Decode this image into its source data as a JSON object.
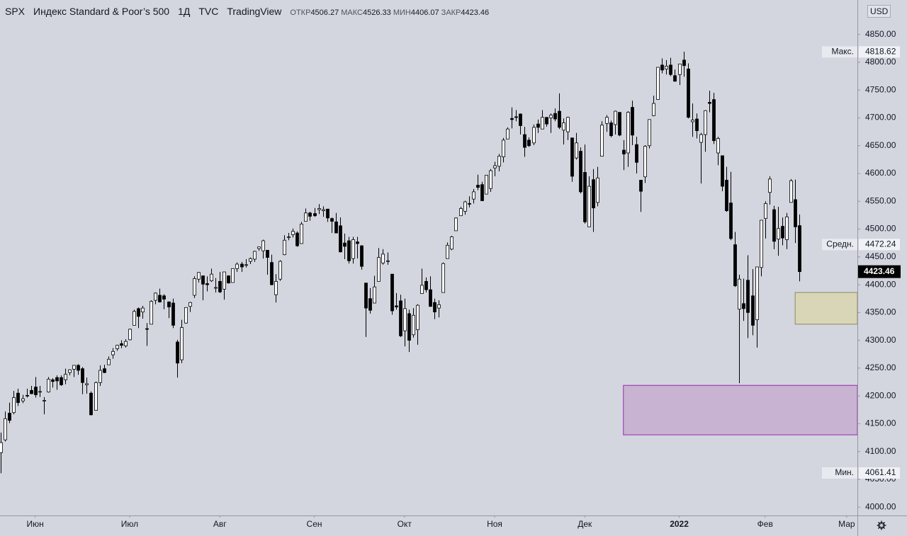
{
  "chart_data": {
    "type": "candlestick",
    "symbol": "SPX",
    "title": "Индекс Standard & Poor’s 500",
    "interval": "1Д",
    "exchange": "TVC",
    "source": "TradingView",
    "ohlc_labels": [
      "ОТКР",
      "МАКС",
      "МИН",
      "ЗАКР"
    ],
    "currency": "USD",
    "up_color": "#ffffff",
    "down_color": "#000000",
    "open": [
      4098,
      4121,
      4169,
      4170,
      4205,
      4191,
      4201,
      4210,
      4216,
      4207,
      4191,
      4207,
      4229,
      4233,
      4233,
      4229,
      4242,
      4248,
      4255,
      4249,
      4220,
      4205,
      4174,
      4224,
      4249,
      4256,
      4274,
      4285,
      4294,
      4290,
      4301,
      4327,
      4357,
      4351,
      4321,
      4329,
      4372,
      4381,
      4380,
      4369,
      4367,
      4297,
      4265,
      4331,
      4361,
      4381,
      4410,
      4416,
      4402,
      4407,
      4395,
      4406,
      4392,
      4416,
      4404,
      4429,
      4437,
      4436,
      4442,
      4446,
      4465,
      4461,
      4462,
      4440,
      4382,
      4410,
      4454,
      4485,
      4490,
      4493,
      4474,
      4514,
      4529,
      4528,
      4535,
      4533,
      4536,
      4519,
      4513,
      4506,
      4475,
      4479,
      4447,
      4477,
      4470,
      4403,
      4375,
      4367,
      4406,
      4439,
      4443,
      4419,
      4362,
      4371,
      4317,
      4348,
      4310,
      4319,
      4384,
      4406,
      4391,
      4368,
      4358,
      4386,
      4447,
      4464,
      4497,
      4524,
      4532,
      4546,
      4554,
      4579,
      4580,
      4563,
      4573,
      4610,
      4613,
      4630,
      4662,
      4699,
      4702,
      4707,
      4670,
      4660,
      4655,
      4689,
      4680,
      4701,
      4700,
      4708,
      4712,
      4678,
      4675,
      4664,
      4628,
      4640,
      4602,
      4504,
      4589,
      4548,
      4631,
      4690,
      4691,
      4688,
      4710,
      4642,
      4637,
      4719,
      4652,
      4588,
      4594,
      4650,
      4704,
      4733,
      4795,
      4788,
      4795,
      4776,
      4778,
      4804,
      4788,
      4693,
      4698,
      4656,
      4670,
      4728,
      4733,
      4637,
      4632,
      4588,
      4547,
      4472,
      4356,
      4366,
      4408,
      4380,
      4337,
      4431,
      4519,
      4566,
      4535,
      4482,
      4505,
      4481,
      4548,
      4553,
      4506.27
    ],
    "high": [
      4134,
      4172,
      4188,
      4209,
      4213,
      4202,
      4213,
      4218,
      4234,
      4218,
      4198,
      4234,
      4232,
      4237,
      4237,
      4249,
      4248,
      4255,
      4257,
      4252,
      4233,
      4208,
      4226,
      4255,
      4256,
      4271,
      4286,
      4292,
      4300,
      4302,
      4321,
      4355,
      4359,
      4362,
      4331,
      4372,
      4386,
      4393,
      4383,
      4370,
      4375,
      4301,
      4337,
      4359,
      4369,
      4415,
      4423,
      4416,
      4415,
      4429,
      4412,
      4423,
      4423,
      4417,
      4429,
      4440,
      4441,
      4446,
      4449,
      4461,
      4468,
      4481,
      4462,
      4454,
      4419,
      4444,
      4489,
      4493,
      4501,
      4496,
      4513,
      4537,
      4531,
      4538,
      4545,
      4541,
      4536,
      4521,
      4529,
      4521,
      4492,
      4486,
      4486,
      4486,
      4471,
      4403,
      4394,
      4416,
      4466,
      4464,
      4458,
      4419,
      4385,
      4382,
      4375,
      4355,
      4358,
      4365,
      4429,
      4413,
      4415,
      4375,
      4372,
      4440,
      4476,
      4488,
      4521,
      4540,
      4551,
      4559,
      4572,
      4598,
      4585,
      4597,
      4608,
      4621,
      4635,
      4664,
      4683,
      4719,
      4714,
      4708,
      4684,
      4665,
      4688,
      4697,
      4714,
      4701,
      4708,
      4717,
      4744,
      4699,
      4702,
      4664,
      4673,
      4647,
      4652,
      4595,
      4608,
      4612,
      4694,
      4705,
      4695,
      4713,
      4710,
      4660,
      4712,
      4731,
      4666,
      4588,
      4651,
      4697,
      4740,
      4791,
      4807,
      4804,
      4808,
      4787,
      4797,
      4819,
      4798,
      4726,
      4708,
      4673,
      4714,
      4749,
      4745,
      4666,
      4632,
      4612,
      4603,
      4495,
      4418,
      4411,
      4453,
      4428,
      4432,
      4516,
      4550,
      4595,
      4542,
      4540,
      4521,
      4529,
      4590,
      4589,
      4526.33
    ],
    "low": [
      4061,
      4118,
      4151,
      4167,
      4182,
      4187,
      4197,
      4203,
      4197,
      4198,
      4167,
      4206,
      4215,
      4211,
      4218,
      4221,
      4237,
      4234,
      4238,
      4203,
      4204,
      4165,
      4174,
      4218,
      4241,
      4256,
      4267,
      4281,
      4286,
      4287,
      4300,
      4327,
      4322,
      4339,
      4290,
      4329,
      4365,
      4368,
      4356,
      4340,
      4322,
      4233,
      4259,
      4330,
      4351,
      4376,
      4404,
      4372,
      4388,
      4405,
      4386,
      4385,
      4373,
      4402,
      4404,
      4423,
      4423,
      4431,
      4437,
      4441,
      4461,
      4447,
      4418,
      4399,
      4368,
      4407,
      4453,
      4480,
      4485,
      4468,
      4474,
      4514,
      4515,
      4522,
      4527,
      4522,
      4513,
      4493,
      4493,
      4458,
      4446,
      4438,
      4438,
      4447,
      4427,
      4306,
      4348,
      4367,
      4406,
      4436,
      4436,
      4346,
      4355,
      4306,
      4289,
      4279,
      4305,
      4292,
      4384,
      4386,
      4360,
      4338,
      4341,
      4386,
      4447,
      4462,
      4497,
      4524,
      4526,
      4539,
      4546,
      4570,
      4551,
      4563,
      4567,
      4595,
      4604,
      4620,
      4662,
      4681,
      4694,
      4670,
      4630,
      4648,
      4651,
      4673,
      4680,
      4684,
      4673,
      4694,
      4680,
      4652,
      4660,
      4585,
      4625,
      4564,
      4510,
      4504,
      4495,
      4541,
      4631,
      4675,
      4665,
      4670,
      4667,
      4606,
      4612,
      4651,
      4600,
      4531,
      4583,
      4645,
      4703,
      4733,
      4780,
      4778,
      4775,
      4765,
      4759,
      4774,
      4699,
      4666,
      4663,
      4582,
      4639,
      4710,
      4653,
      4615,
      4568,
      4531,
      4480,
      4396,
      4223,
      4335,
      4304,
      4309,
      4287,
      4415,
      4483,
      4544,
      4464,
      4452,
      4471,
      4464,
      4548,
      4475,
      4406.07
    ],
    "close": [
      4116,
      4159,
      4156,
      4197,
      4188,
      4195,
      4200,
      4204,
      4202,
      4208,
      4192,
      4230,
      4226,
      4227,
      4220,
      4239,
      4247,
      4255,
      4246,
      4224,
      4222,
      4166,
      4224,
      4246,
      4242,
      4266,
      4280,
      4291,
      4291,
      4298,
      4320,
      4352,
      4343,
      4358,
      4320,
      4370,
      4385,
      4369,
      4374,
      4360,
      4327,
      4259,
      4323,
      4359,
      4368,
      4411,
      4422,
      4401,
      4400,
      4419,
      4395,
      4387,
      4423,
      4403,
      4429,
      4437,
      4432,
      4436,
      4447,
      4460,
      4468,
      4479,
      4449,
      4400,
      4406,
      4442,
      4480,
      4486,
      4496,
      4470,
      4509,
      4529,
      4523,
      4524,
      4537,
      4535,
      4520,
      4514,
      4493,
      4459,
      4469,
      4443,
      4481,
      4474,
      4433,
      4358,
      4354,
      4396,
      4449,
      4455,
      4443,
      4353,
      4360,
      4308,
      4357,
      4300,
      4345,
      4363,
      4399,
      4391,
      4361,
      4351,
      4364,
      4438,
      4471,
      4486,
      4520,
      4537,
      4549,
      4545,
      4567,
      4575,
      4551,
      4597,
      4605,
      4614,
      4631,
      4660,
      4680,
      4697,
      4701,
      4686,
      4647,
      4650,
      4683,
      4683,
      4701,
      4689,
      4705,
      4698,
      4683,
      4691,
      4701,
      4595,
      4655,
      4567,
      4513,
      4577,
      4538,
      4592,
      4687,
      4701,
      4668,
      4712,
      4669,
      4635,
      4710,
      4669,
      4620,
      4568,
      4649,
      4697,
      4726,
      4791,
      4786,
      4793,
      4778,
      4766,
      4797,
      4794,
      4701,
      4696,
      4677,
      4670,
      4713,
      4726,
      4659,
      4663,
      4577,
      4533,
      4483,
      4398,
      4410,
      4357,
      4350,
      4327,
      4432,
      4516,
      4546,
      4590,
      4478,
      4501,
      4484,
      4522,
      4587,
      4504,
      4423.46
    ],
    "xlim": [
      -0.2,
      199.5
    ],
    "xticks": [
      {
        "value": 8,
        "label": "Июн"
      },
      {
        "value": 30,
        "label": "Июл"
      },
      {
        "value": 51,
        "label": "Авг"
      },
      {
        "value": 73,
        "label": "Сен"
      },
      {
        "value": 94,
        "label": "Окт"
      },
      {
        "value": 115,
        "label": "Ноя"
      },
      {
        "value": 136,
        "label": "Дек"
      },
      {
        "value": 158,
        "label": "2022"
      },
      {
        "value": 178,
        "label": "Фев"
      },
      {
        "value": 197,
        "label": "Мар"
      }
    ],
    "ylim": [
      3985,
      4912
    ],
    "yticks": [
      {
        "value": 4000,
        "label": "4000.00"
      },
      {
        "value": 4050,
        "label": "4050.00"
      },
      {
        "value": 4100,
        "label": "4100.00"
      },
      {
        "value": 4150,
        "label": "4150.00"
      },
      {
        "value": 4200,
        "label": "4200.00"
      },
      {
        "value": 4250,
        "label": "4250.00"
      },
      {
        "value": 4300,
        "label": "4300.00"
      },
      {
        "value": 4350,
        "label": "4350.00"
      },
      {
        "value": 4400,
        "label": "4400.00"
      },
      {
        "value": 4450,
        "label": "4450.00"
      },
      {
        "value": 4500,
        "label": "4500.00"
      },
      {
        "value": 4550,
        "label": "4550.00"
      },
      {
        "value": 4600,
        "label": "4600.00"
      },
      {
        "value": 4650,
        "label": "4650.00"
      },
      {
        "value": 4700,
        "label": "4700.00"
      },
      {
        "value": 4750,
        "label": "4750.00"
      },
      {
        "value": 4800,
        "label": "4800.00"
      },
      {
        "value": 4850,
        "label": "4850.00"
      }
    ],
    "annotations": [
      {
        "label": "Макс.",
        "value": 4818.62
      },
      {
        "label": "Средн.",
        "value": 4472.24
      },
      {
        "label": "Мин.",
        "value": 4061.41
      }
    ],
    "zones": [
      {
        "from": 4329,
        "to": 4386,
        "start": 185,
        "color": "#d9d6b8"
      },
      {
        "from": 4130,
        "to": 4219,
        "start": 145,
        "color": "#c8b3d3"
      }
    ]
  }
}
